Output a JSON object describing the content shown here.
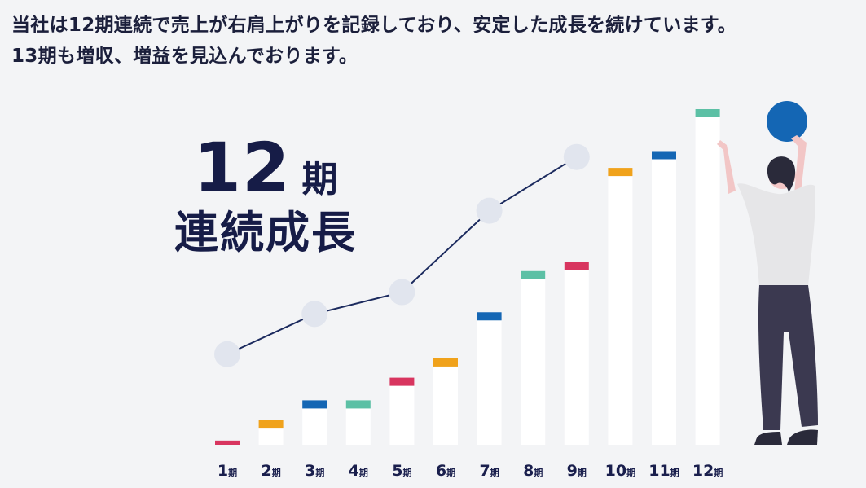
{
  "headline": {
    "line1": "当社は12期連続で売上が右肩上がりを記録しており、安定した成長を続けています。",
    "line2": "13期も増収、増益を見込んでおります。"
  },
  "badge": {
    "number": "12",
    "unit": "期",
    "label": "連続成長"
  },
  "colors": {
    "background": "#f3f4f6",
    "bar": "#ffffff",
    "line": "#1b2a5e",
    "dot": "#e1e5ee",
    "pink": "#d8355f",
    "orange": "#f0a21b",
    "blue": "#1466b4",
    "teal": "#5cc0a5",
    "figure_ball": "#1466b4"
  },
  "chart_data": {
    "type": "bar",
    "categories": [
      "1",
      "2",
      "3",
      "4",
      "5",
      "6",
      "7",
      "8",
      "9",
      "10",
      "11",
      "12"
    ],
    "category_suffix": "期",
    "values": [
      0.5,
      3.0,
      5.3,
      5.3,
      8.0,
      10.3,
      15.8,
      20.7,
      21.8,
      33.0,
      35.0,
      40.0
    ],
    "cap_colors": [
      "pink",
      "orange",
      "blue",
      "teal",
      "pink",
      "orange",
      "blue",
      "teal",
      "pink",
      "orange",
      "blue",
      "teal"
    ],
    "line_series": {
      "x": [
        "1",
        "3",
        "5",
        "7",
        "9"
      ],
      "values": [
        10.8,
        15.6,
        18.2,
        27.9,
        34.3
      ]
    },
    "ylim": [
      0,
      41
    ],
    "grid": false,
    "title": "",
    "xlabel": "",
    "ylabel": ""
  }
}
